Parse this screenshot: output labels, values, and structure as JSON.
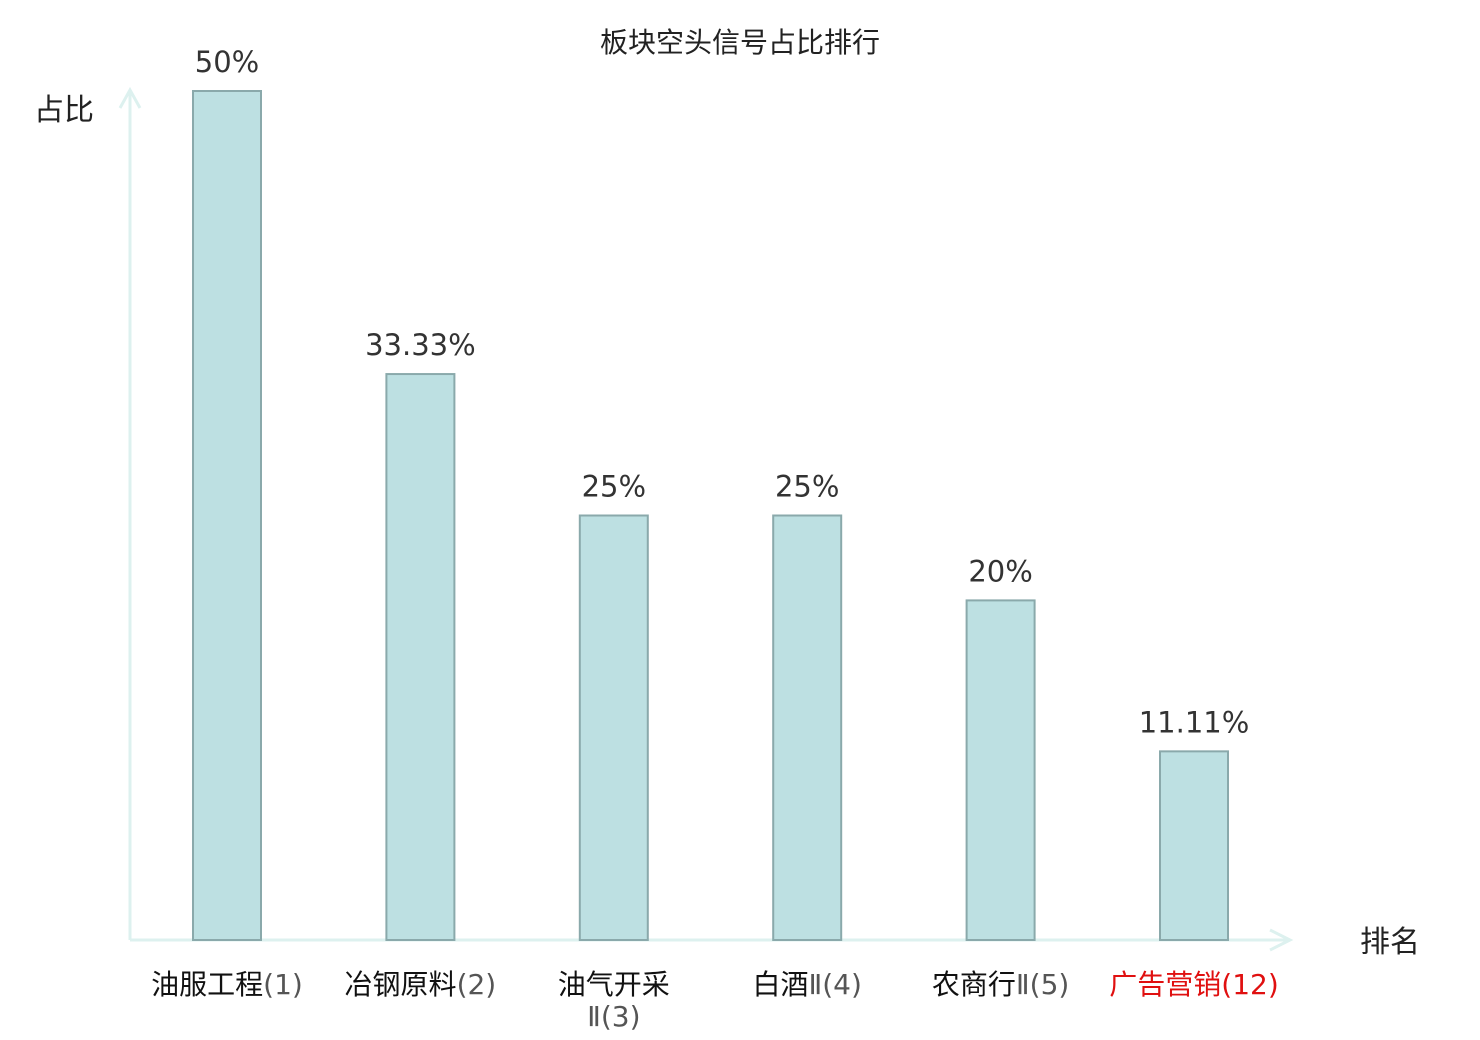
{
  "chart_data": {
    "type": "bar",
    "title": "板块空头信号占比排行",
    "xlabel": "排名",
    "ylabel": "占比",
    "ylim": [
      0,
      50
    ],
    "categories": [
      {
        "name": "油服工程",
        "rank": "(1)",
        "wrap": false,
        "highlight": false
      },
      {
        "name": "冶钢原料",
        "rank": "(2)",
        "wrap": false,
        "highlight": false
      },
      {
        "name": "油气开采",
        "rank": "Ⅱ(3)",
        "wrap": true,
        "highlight": false
      },
      {
        "name": "白酒",
        "rank": "Ⅱ(4)",
        "wrap": false,
        "highlight": false
      },
      {
        "name": "农商行",
        "rank": "Ⅱ(5)",
        "wrap": false,
        "highlight": false
      },
      {
        "name": "广告营销",
        "rank": "(12)",
        "wrap": false,
        "highlight": true
      }
    ],
    "values": [
      50,
      33.33,
      25,
      25,
      20,
      11.11
    ],
    "value_labels": [
      "50%",
      "33.33%",
      "25%",
      "25%",
      "20%",
      "11.11%"
    ],
    "grid": false,
    "legend": "none"
  },
  "colors": {
    "bar_fill": "#bde0e2",
    "bar_stroke": "#8aa9ab",
    "axis": "#ddf1ef",
    "text": "#222222",
    "value_text": "#333333",
    "name_text": "#111111",
    "rank_text": "#555555",
    "highlight": "#e01010"
  }
}
